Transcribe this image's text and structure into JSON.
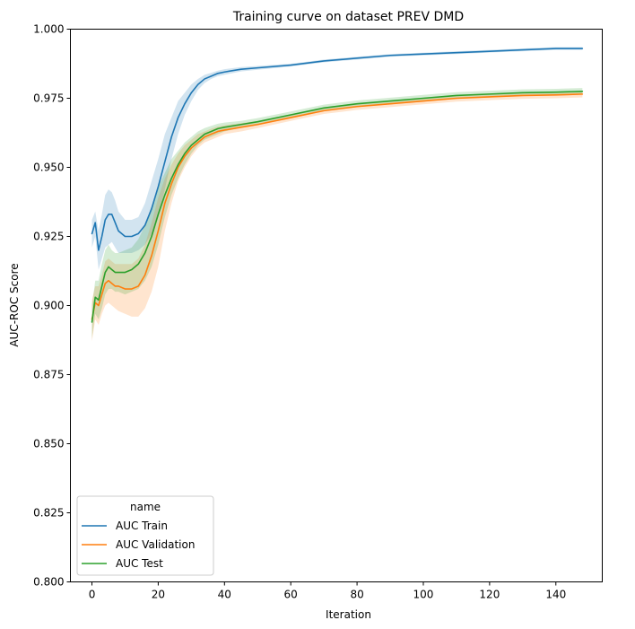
{
  "chart_data": {
    "type": "line",
    "title": "Training curve on dataset PREV DMD",
    "xlabel": "Iteration",
    "ylabel": "AUC-ROC Score",
    "xlim": [
      -6.5,
      154
    ],
    "ylim": [
      0.8,
      1.0
    ],
    "x_ticks": [
      0,
      20,
      40,
      60,
      80,
      100,
      120,
      140
    ],
    "y_ticks": [
      0.8,
      0.825,
      0.85,
      0.875,
      0.9,
      0.925,
      0.95,
      0.975,
      1.0
    ],
    "y_tick_labels": [
      "0.800",
      "0.825",
      "0.850",
      "0.875",
      "0.900",
      "0.925",
      "0.950",
      "0.975",
      "1.000"
    ],
    "grid": false,
    "legend": {
      "title": "name",
      "placement": "lower-left"
    },
    "series": [
      {
        "name": "AUC Train",
        "color": "#1f77b4",
        "x": [
          0,
          1,
          2,
          3,
          4,
          5,
          6,
          7,
          8,
          10,
          12,
          14,
          16,
          18,
          20,
          22,
          24,
          26,
          28,
          30,
          32,
          34,
          36,
          38,
          40,
          45,
          50,
          60,
          70,
          80,
          90,
          100,
          110,
          120,
          130,
          140,
          148
        ],
        "y": [
          0.926,
          0.93,
          0.92,
          0.925,
          0.931,
          0.933,
          0.933,
          0.93,
          0.927,
          0.925,
          0.925,
          0.926,
          0.929,
          0.935,
          0.943,
          0.952,
          0.961,
          0.968,
          0.973,
          0.977,
          0.98,
          0.982,
          0.983,
          0.984,
          0.9845,
          0.9855,
          0.986,
          0.987,
          0.9885,
          0.9895,
          0.9905,
          0.991,
          0.9915,
          0.992,
          0.9925,
          0.993,
          0.993
        ],
        "lower": [
          0.921,
          0.925,
          0.913,
          0.917,
          0.921,
          0.922,
          0.923,
          0.921,
          0.919,
          0.919,
          0.919,
          0.92,
          0.922,
          0.926,
          0.932,
          0.942,
          0.953,
          0.962,
          0.969,
          0.974,
          0.978,
          0.9805,
          0.982,
          0.983,
          0.9835,
          0.9847,
          0.9853,
          0.9865,
          0.988,
          0.989,
          0.99,
          0.9905,
          0.991,
          0.9915,
          0.992,
          0.9925,
          0.9925
        ],
        "upper": [
          0.931,
          0.934,
          0.927,
          0.933,
          0.94,
          0.942,
          0.941,
          0.938,
          0.934,
          0.931,
          0.931,
          0.932,
          0.937,
          0.945,
          0.953,
          0.962,
          0.968,
          0.974,
          0.977,
          0.98,
          0.982,
          0.9835,
          0.9842,
          0.985,
          0.9855,
          0.9863,
          0.9867,
          0.9875,
          0.989,
          0.99,
          0.991,
          0.9915,
          0.992,
          0.9925,
          0.993,
          0.9935,
          0.9935
        ]
      },
      {
        "name": "AUC Validation",
        "color": "#ff7f0e",
        "x": [
          0,
          1,
          2,
          3,
          4,
          5,
          6,
          7,
          8,
          10,
          12,
          14,
          16,
          18,
          20,
          22,
          24,
          26,
          28,
          30,
          32,
          34,
          36,
          38,
          40,
          45,
          50,
          60,
          70,
          80,
          90,
          100,
          110,
          120,
          130,
          140,
          148
        ],
        "y": [
          0.895,
          0.901,
          0.9,
          0.904,
          0.908,
          0.909,
          0.908,
          0.907,
          0.907,
          0.906,
          0.906,
          0.907,
          0.911,
          0.918,
          0.927,
          0.937,
          0.944,
          0.95,
          0.954,
          0.957,
          0.959,
          0.961,
          0.962,
          0.963,
          0.9635,
          0.9645,
          0.9655,
          0.968,
          0.9705,
          0.972,
          0.973,
          0.974,
          0.975,
          0.9755,
          0.976,
          0.9762,
          0.9765
        ],
        "lower": [
          0.887,
          0.895,
          0.893,
          0.897,
          0.9,
          0.901,
          0.9,
          0.899,
          0.898,
          0.897,
          0.896,
          0.896,
          0.899,
          0.905,
          0.914,
          0.927,
          0.937,
          0.945,
          0.95,
          0.954,
          0.957,
          0.959,
          0.96,
          0.961,
          0.962,
          0.963,
          0.9642,
          0.9668,
          0.9693,
          0.9708,
          0.9718,
          0.9728,
          0.9738,
          0.9743,
          0.9748,
          0.975,
          0.9753
        ],
        "upper": [
          0.902,
          0.907,
          0.907,
          0.911,
          0.916,
          0.917,
          0.916,
          0.915,
          0.915,
          0.915,
          0.915,
          0.917,
          0.922,
          0.93,
          0.939,
          0.946,
          0.951,
          0.955,
          0.958,
          0.96,
          0.962,
          0.963,
          0.964,
          0.9648,
          0.9652,
          0.966,
          0.9668,
          0.9692,
          0.9717,
          0.9732,
          0.9742,
          0.9752,
          0.9762,
          0.9767,
          0.9772,
          0.9774,
          0.9777
        ]
      },
      {
        "name": "AUC Test",
        "color": "#2ca02c",
        "x": [
          0,
          1,
          2,
          3,
          4,
          5,
          6,
          7,
          8,
          10,
          12,
          14,
          16,
          18,
          20,
          22,
          24,
          26,
          28,
          30,
          32,
          34,
          36,
          38,
          40,
          45,
          50,
          60,
          70,
          80,
          90,
          100,
          110,
          120,
          130,
          140,
          148
        ],
        "y": [
          0.894,
          0.903,
          0.902,
          0.907,
          0.912,
          0.914,
          0.913,
          0.912,
          0.912,
          0.912,
          0.913,
          0.915,
          0.919,
          0.925,
          0.933,
          0.94,
          0.946,
          0.951,
          0.955,
          0.958,
          0.96,
          0.962,
          0.963,
          0.964,
          0.9645,
          0.9655,
          0.9665,
          0.969,
          0.9715,
          0.973,
          0.974,
          0.975,
          0.976,
          0.9765,
          0.977,
          0.9772,
          0.9775
        ],
        "lower": [
          0.888,
          0.897,
          0.895,
          0.899,
          0.904,
          0.906,
          0.906,
          0.905,
          0.905,
          0.904,
          0.905,
          0.906,
          0.909,
          0.914,
          0.922,
          0.932,
          0.94,
          0.946,
          0.951,
          0.955,
          0.958,
          0.96,
          0.961,
          0.962,
          0.963,
          0.9643,
          0.9653,
          0.9678,
          0.9703,
          0.9718,
          0.9728,
          0.9738,
          0.9748,
          0.9753,
          0.9758,
          0.976,
          0.9763
        ],
        "upper": [
          0.9,
          0.909,
          0.909,
          0.915,
          0.92,
          0.922,
          0.92,
          0.919,
          0.919,
          0.92,
          0.921,
          0.924,
          0.929,
          0.936,
          0.943,
          0.948,
          0.953,
          0.956,
          0.959,
          0.961,
          0.963,
          0.9642,
          0.965,
          0.9658,
          0.9662,
          0.9668,
          0.9678,
          0.9702,
          0.9727,
          0.9742,
          0.9752,
          0.9762,
          0.9772,
          0.9777,
          0.9782,
          0.9784,
          0.9787
        ]
      }
    ]
  }
}
